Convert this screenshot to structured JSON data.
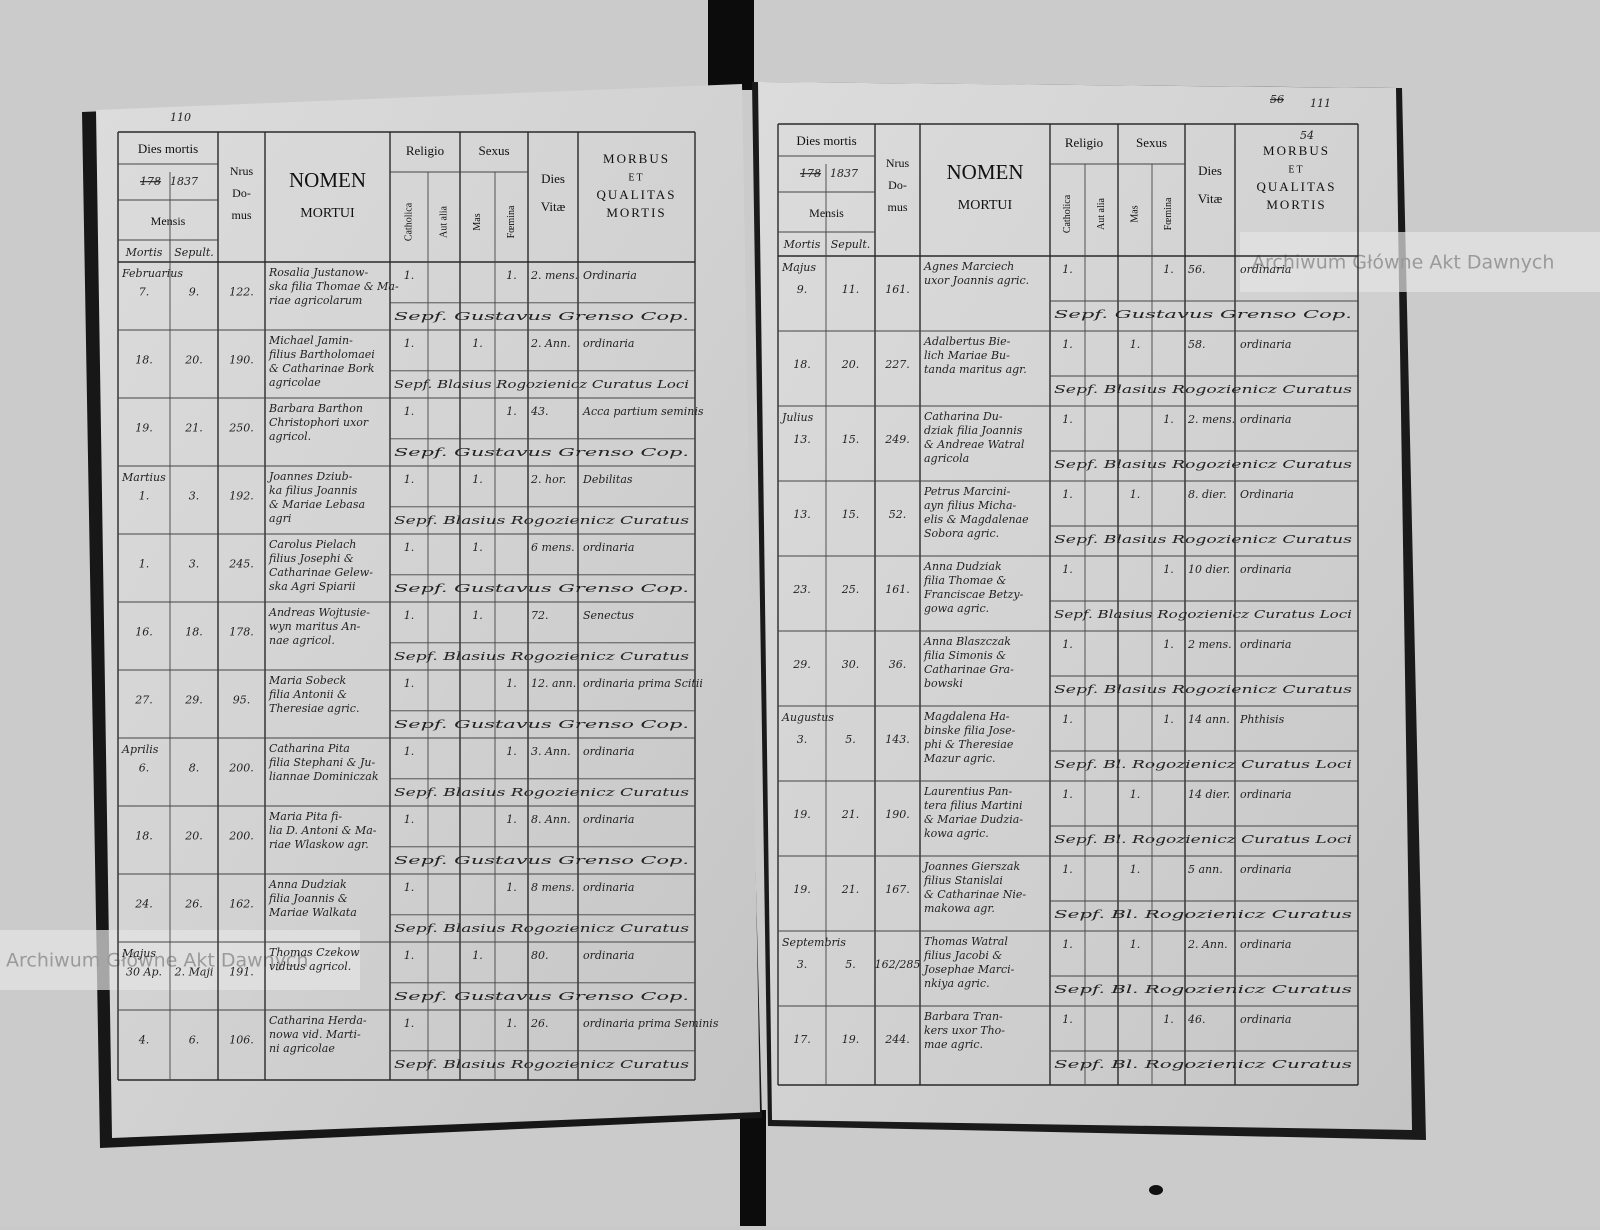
{
  "watermark": "Archiwum Główne Akt Dawnych",
  "left_page": {
    "page_number": "110",
    "year_struck": "178",
    "year": "1837",
    "headers": {
      "dies_mortis": "Dies mortis",
      "mensis": "Mensis",
      "mortis": "Mortis",
      "sepult": "Sepult.",
      "domus": [
        "Nrus",
        "Do-",
        "mus"
      ],
      "nomen": "NOMEN",
      "mortui": "MORTUI",
      "religio": "Religio",
      "catholica": "Catholica",
      "aut_alia": "Aut alia",
      "sexus": "Sexus",
      "mas": "Mas",
      "foemina": "Fœmina",
      "dies_vitae": [
        "Dies",
        "Vitæ"
      ],
      "morbus": [
        "MORBUS",
        "ET",
        "QUALITAS",
        "MORTIS"
      ]
    },
    "rows": [
      {
        "month": "Februarius",
        "mortis": "7.",
        "sepult": "9.",
        "domus": "122.",
        "nomen": [
          "Rosalia Justanow-",
          "ska filia Thomae & Ma-",
          "riae agricolarum"
        ],
        "cath": "1.",
        "foem": "1.",
        "vitae": "2. mens.",
        "morbus": "Ordinaria",
        "sepultor": "Sepf. Gustavus Grenso Cop."
      },
      {
        "mortis": "18.",
        "sepult": "20.",
        "domus": "190.",
        "nomen": [
          "Michael Jamin-",
          "filius Bartholomaei",
          "& Catharinae Bork",
          "agricolae"
        ],
        "cath": "1.",
        "mas": "1.",
        "vitae": "2. Ann.",
        "morbus": "ordinaria",
        "sepultor": "Sepf. Blasius Rogozienicz Curatus Loci"
      },
      {
        "mortis": "19.",
        "sepult": "21.",
        "domus": "250.",
        "nomen": [
          "Barbara Barthon",
          "Christophori uxor",
          "agricol."
        ],
        "cath": "1.",
        "foem": "1.",
        "vitae": "43.",
        "morbus": "Acca partium seminis",
        "sepultor": "Sepf. Gustavus Grenso Cop."
      },
      {
        "month": "Martius",
        "mortis": "1.",
        "sepult": "3.",
        "domus": "192.",
        "nomen": [
          "Joannes Dziub-",
          "ka filius Joannis",
          "& Mariae Lebasa",
          "agri"
        ],
        "cath": "1.",
        "mas": "1.",
        "vitae": "2. hor.",
        "morbus": "Debilitas",
        "sepultor": "Sepf. Blasius Rogozienicz Curatus"
      },
      {
        "mortis": "1.",
        "sepult": "3.",
        "domus": "245.",
        "nomen": [
          "Carolus Pielach",
          "filius Josephi &",
          "Catharinae Gelew-",
          "ska Agri Spiarii"
        ],
        "cath": "1.",
        "mas": "1.",
        "vitae": "6 mens.",
        "morbus": "ordinaria",
        "sepultor": "Sepf. Gustavus Grenso Cop."
      },
      {
        "mortis": "16.",
        "sepult": "18.",
        "domus": "178.",
        "nomen": [
          "Andreas Wojtusie-",
          "wyn maritus An-",
          "nae agricol."
        ],
        "cath": "1.",
        "mas": "1.",
        "vitae": "72.",
        "morbus": "Senectus",
        "sepultor": "Sepf. Blasius Rogozienicz Curatus"
      },
      {
        "mortis": "27.",
        "sepult": "29.",
        "domus": "95.",
        "nomen": [
          "Maria Sobeck",
          "filia Antonii &",
          "Theresiae agric."
        ],
        "cath": "1.",
        "foem": "1.",
        "vitae": "12. ann.",
        "morbus": "ordinaria prima Scitii",
        "sepultor": "Sepf. Gustavus Grenso Cop."
      },
      {
        "month": "Aprilis",
        "mortis": "6.",
        "sepult": "8.",
        "domus": "200.",
        "nomen": [
          "Catharina Pita",
          "filia Stephani & Ju-",
          "liannae Dominiczak"
        ],
        "cath": "1.",
        "foem": "1.",
        "vitae": "3. Ann.",
        "morbus": "ordinaria",
        "sepultor": "Sepf. Blasius Rogozienicz Curatus"
      },
      {
        "mortis": "18.",
        "sepult": "20.",
        "domus": "200.",
        "nomen": [
          "Maria Pita fi-",
          "lia D. Antoni & Ma-",
          "riae Wlaskow agr."
        ],
        "cath": "1.",
        "foem": "1.",
        "vitae": "8. Ann.",
        "morbus": "ordinaria",
        "sepultor": "Sepf. Gustavus Grenso Cop."
      },
      {
        "mortis": "24.",
        "sepult": "26.",
        "domus": "162.",
        "nomen": [
          "Anna Dudziak",
          "filia Joannis &",
          "Mariae Walkata"
        ],
        "cath": "1.",
        "foem": "1.",
        "vitae": "8 mens.",
        "morbus": "ordinaria",
        "sepultor": "Sepf. Blasius Rogozienicz Curatus"
      },
      {
        "month": "Majus",
        "mortis": "30 Ap.",
        "sepult": "2. Maji",
        "domus": "191.",
        "nomen": [
          "Thomas Czekow",
          "viduus agricol."
        ],
        "cath": "1.",
        "mas": "1.",
        "vitae": "80.",
        "morbus": "ordinaria",
        "sepultor": "Sepf. Gustavus Grenso Cop."
      },
      {
        "mortis": "4.",
        "sepult": "6.",
        "domus": "106.",
        "nomen": [
          "Catharina Herda-",
          "nowa vid. Marti-",
          "ni agricolae"
        ],
        "cath": "1.",
        "foem": "1.",
        "vitae": "26.",
        "morbus": "ordinaria prima Seminis",
        "sepultor": "Sepf. Blasius Rogozienicz Curatus"
      }
    ]
  },
  "right_page": {
    "page_number_struck": "56",
    "page_number": "111",
    "page_number_small": "54",
    "year_struck": "178",
    "year": "1837",
    "headers": {
      "dies_mortis": "Dies mortis",
      "mensis": "Mensis",
      "mortis": "Mortis",
      "sepult": "Sepult.",
      "domus": [
        "Nrus",
        "Do-",
        "mus"
      ],
      "nomen": "NOMEN",
      "mortui": "MORTUI",
      "religio": "Religio",
      "catholica": "Catholica",
      "aut_alia": "Aut alia",
      "sexus": "Sexus",
      "mas": "Mas",
      "foemina": "Fœmina",
      "dies_vitae": [
        "Dies",
        "Vitæ"
      ],
      "morbus": [
        "MORBUS",
        "ET",
        "QUALITAS",
        "MORTIS"
      ]
    },
    "rows": [
      {
        "month": "Majus",
        "mortis": "9.",
        "sepult": "11.",
        "domus": "161.",
        "nomen": [
          "Agnes Marciech",
          "uxor Joannis agric."
        ],
        "cath": "1.",
        "foem": "1.",
        "vitae": "56.",
        "morbus": "ordinaria",
        "sepultor": "Sepf. Gustavus Grenso Cop."
      },
      {
        "mortis": "18.",
        "sepult": "20.",
        "domus": "227.",
        "nomen": [
          "Adalbertus Bie-",
          "lich Mariae Bu-",
          "tanda maritus agr."
        ],
        "cath": "1.",
        "mas": "1.",
        "vitae": "58.",
        "morbus": "ordinaria",
        "sepultor": "Sepf. Blasius Rogozienicz Curatus"
      },
      {
        "month": "Julius",
        "mortis": "13.",
        "sepult": "15.",
        "domus": "249.",
        "nomen": [
          "Catharina Du-",
          "dziak filia Joannis",
          "& Andreae Watral",
          "agricola"
        ],
        "cath": "1.",
        "foem": "1.",
        "vitae": "2. mens.",
        "morbus": "ordinaria",
        "sepultor": "Sepf. Blasius Rogozienicz Curatus"
      },
      {
        "mortis": "13.",
        "sepult": "15.",
        "domus": "52.",
        "nomen": [
          "Petrus Marcini-",
          "ayn filius Micha-",
          "elis & Magdalenae",
          "Sobora agric."
        ],
        "cath": "1.",
        "mas": "1.",
        "vitae": "8. dier.",
        "morbus": "Ordinaria",
        "sepultor": "Sepf. Blasius Rogozienicz Curatus"
      },
      {
        "mortis": "23.",
        "sepult": "25.",
        "domus": "161.",
        "nomen": [
          "Anna Dudziak",
          "filia Thomae &",
          "Franciscae Betzy-",
          "gowa agric."
        ],
        "cath": "1.",
        "foem": "1.",
        "vitae": "10 dier.",
        "morbus": "ordinaria",
        "sepultor": "Sepf. Blasius Rogozienicz Curatus Loci"
      },
      {
        "mortis": "29.",
        "sepult": "30.",
        "domus": "36.",
        "nomen": [
          "Anna Blaszczak",
          "filia Simonis &",
          "Catharinae Gra-",
          "bowski"
        ],
        "cath": "1.",
        "foem": "1.",
        "vitae": "2 mens.",
        "morbus": "ordinaria",
        "sepultor": "Sepf. Blasius Rogozienicz Curatus"
      },
      {
        "month": "Augustus",
        "mortis": "3.",
        "sepult": "5.",
        "domus": "143.",
        "nomen": [
          "Magdalena Ha-",
          "binske filia Jose-",
          "phi & Theresiae",
          "Mazur agric."
        ],
        "cath": "1.",
        "foem": "1.",
        "vitae": "14 ann.",
        "morbus": "Phthisis",
        "sepultor": "Sepf. Bl. Rogozienicz Curatus Loci"
      },
      {
        "mortis": "19.",
        "sepult": "21.",
        "domus": "190.",
        "nomen": [
          "Laurentius Pan-",
          "tera filius Martini",
          "& Mariae Dudzia-",
          "kowa agric."
        ],
        "cath": "1.",
        "mas": "1.",
        "vitae": "14 dier.",
        "morbus": "ordinaria",
        "sepultor": "Sepf. Bl. Rogozienicz Curatus Loci"
      },
      {
        "mortis": "19.",
        "sepult": "21.",
        "domus": "167.",
        "nomen": [
          "Joannes Gierszak",
          "filius Stanislai",
          "& Catharinae Nie-",
          "makowa agr."
        ],
        "cath": "1.",
        "mas": "1.",
        "vitae": "5 ann.",
        "morbus": "ordinaria",
        "sepultor": "Sepf. Bl. Rogozienicz Curatus"
      },
      {
        "month": "Septembris",
        "mortis": "3.",
        "sepult": "5.",
        "domus": "162/285",
        "nomen": [
          "Thomas Watral",
          "filius Jacobi &",
          "Josephae Marci-",
          "nkiya agric."
        ],
        "cath": "1.",
        "mas": "1.",
        "vitae": "2. Ann.",
        "morbus": "ordinaria",
        "sepultor": "Sepf. Bl. Rogozienicz Curatus"
      },
      {
        "mortis": "17.",
        "sepult": "19.",
        "domus": "244.",
        "nomen": [
          "Barbara Tran-",
          "kers uxor Tho-",
          "mae agric."
        ],
        "cath": "1.",
        "foem": "1.",
        "vitae": "46.",
        "morbus": "ordinaria",
        "sepultor": "Sepf. Bl. Rogozienicz Curatus"
      }
    ]
  }
}
